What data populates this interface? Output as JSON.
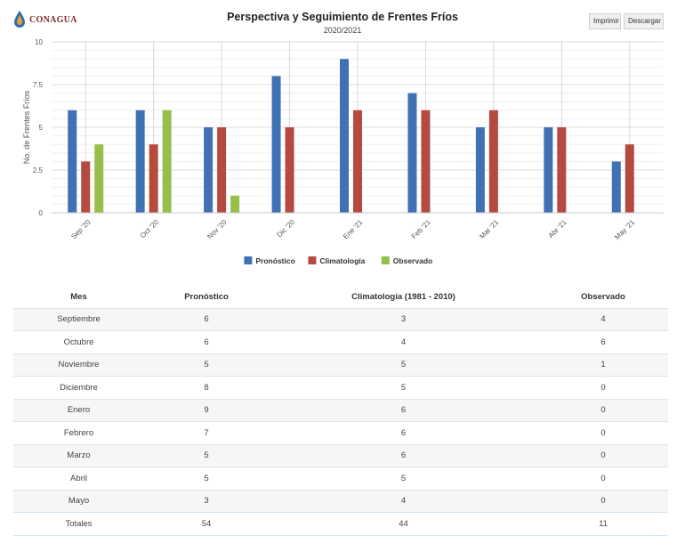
{
  "app": {
    "logo_text": "CONAGUA",
    "print_label": "Imprimir",
    "download_label": "Descargar"
  },
  "chart_data": {
    "type": "bar",
    "title": "Perspectiva y Seguimiento de Frentes Fríos",
    "subtitle": "2020/2021",
    "ylabel": "No. de Frentes Fríos",
    "xlabel": "",
    "ylim": [
      0,
      10
    ],
    "yticks": [
      0,
      2.5,
      5,
      7.5,
      10
    ],
    "ytick_labels": [
      "0",
      "2.5",
      "5",
      "7.5",
      "10"
    ],
    "grid": true,
    "legend_position": "bottom-center",
    "categories": [
      "Sep '20",
      "Oct '20",
      "Nov '20",
      "Dic '20",
      "Ene '21",
      "Feb '21",
      "Mar '21",
      "Abr '21",
      "May '21"
    ],
    "series": [
      {
        "name": "Pronóstico",
        "color": "#3f72b5",
        "values": [
          6,
          6,
          5,
          8,
          9,
          7,
          5,
          5,
          3
        ]
      },
      {
        "name": "Climatología",
        "color": "#b54a3f",
        "values": [
          3,
          4,
          5,
          5,
          6,
          6,
          6,
          5,
          4
        ]
      },
      {
        "name": "Observado",
        "color": "#96be4a",
        "values": [
          4,
          6,
          1,
          0,
          0,
          0,
          0,
          0,
          0
        ]
      }
    ]
  },
  "table": {
    "headers": [
      "Mes",
      "Pronóstico",
      "Climatología (1981 - 2010)",
      "Observado"
    ],
    "rows": [
      [
        "Septiembre",
        "6",
        "3",
        "4"
      ],
      [
        "Octubre",
        "6",
        "4",
        "6"
      ],
      [
        "Noviembre",
        "5",
        "5",
        "1"
      ],
      [
        "Diciembre",
        "8",
        "5",
        "0"
      ],
      [
        "Enero",
        "9",
        "6",
        "0"
      ],
      [
        "Febrero",
        "7",
        "6",
        "0"
      ],
      [
        "Marzo",
        "5",
        "6",
        "0"
      ],
      [
        "Abril",
        "5",
        "5",
        "0"
      ],
      [
        "Mayo",
        "3",
        "4",
        "0"
      ]
    ],
    "totals": [
      "Totales",
      "54",
      "44",
      "11"
    ]
  }
}
